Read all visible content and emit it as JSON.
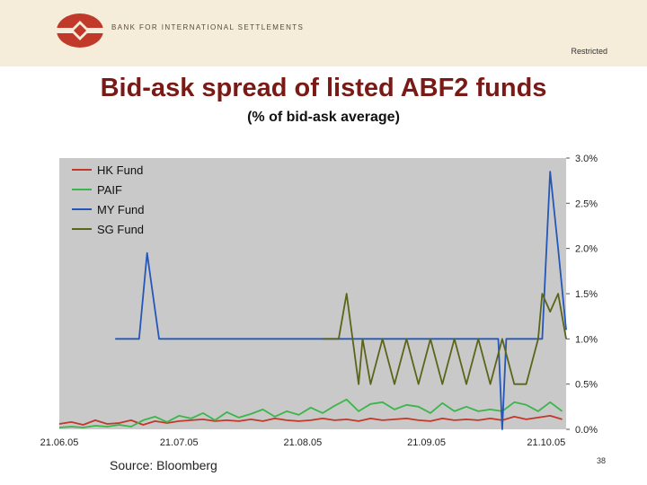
{
  "header": {
    "bank_name": "BANK FOR INTERNATIONAL SETTLEMENTS",
    "restricted": "Restricted",
    "logo_icon": "bis-logo-icon"
  },
  "slide": {
    "title": "Bid-ask spread of listed ABF2 funds",
    "subtitle": "(% of bid-ask average)",
    "source": "Source: Bloomberg",
    "page_number": "38"
  },
  "colors": {
    "plot_bg": "#c9c9c9",
    "HK Fund": "#c0392b",
    "PAIF": "#3cb54a",
    "MY Fund": "#2457b8",
    "SG Fund": "#5b6418",
    "title": "#7a1a16"
  },
  "chart_data": {
    "type": "line",
    "x_start": "2005-06-21",
    "x_end": "2005-10-26",
    "x_ticks": [
      {
        "label": "21.06.05",
        "date": "2005-06-21"
      },
      {
        "label": "21.07.05",
        "date": "2005-07-21"
      },
      {
        "label": "21.08.05",
        "date": "2005-08-21"
      },
      {
        "label": "21.09.05",
        "date": "2005-09-21"
      },
      {
        "label": "21.10.05",
        "date": "2005-10-21"
      }
    ],
    "ylim": [
      0,
      3.0
    ],
    "y_ticks": [
      "0.0%",
      "0.5%",
      "1.0%",
      "1.5%",
      "2.0%",
      "2.5%",
      "3.0%"
    ],
    "y_axis_side": "right",
    "legend_position": "top-left",
    "series": [
      {
        "name": "HK Fund",
        "x": [
          "2005-06-21",
          "2005-06-24",
          "2005-06-27",
          "2005-06-30",
          "2005-07-03",
          "2005-07-06",
          "2005-07-09",
          "2005-07-12",
          "2005-07-15",
          "2005-07-18",
          "2005-07-21",
          "2005-07-24",
          "2005-07-27",
          "2005-07-30",
          "2005-08-02",
          "2005-08-05",
          "2005-08-08",
          "2005-08-11",
          "2005-08-14",
          "2005-08-17",
          "2005-08-20",
          "2005-08-23",
          "2005-08-26",
          "2005-08-29",
          "2005-09-01",
          "2005-09-04",
          "2005-09-07",
          "2005-09-10",
          "2005-09-13",
          "2005-09-16",
          "2005-09-19",
          "2005-09-22",
          "2005-09-25",
          "2005-09-28",
          "2005-10-01",
          "2005-10-04",
          "2005-10-07",
          "2005-10-10",
          "2005-10-13",
          "2005-10-16",
          "2005-10-19",
          "2005-10-22",
          "2005-10-25"
        ],
        "y": [
          0.06,
          0.08,
          0.05,
          0.1,
          0.06,
          0.07,
          0.1,
          0.05,
          0.09,
          0.07,
          0.09,
          0.1,
          0.11,
          0.09,
          0.1,
          0.09,
          0.11,
          0.09,
          0.12,
          0.1,
          0.09,
          0.1,
          0.12,
          0.1,
          0.11,
          0.09,
          0.12,
          0.1,
          0.11,
          0.12,
          0.1,
          0.09,
          0.12,
          0.1,
          0.11,
          0.1,
          0.12,
          0.1,
          0.14,
          0.11,
          0.13,
          0.15,
          0.11
        ]
      },
      {
        "name": "PAIF",
        "x": [
          "2005-06-21",
          "2005-06-24",
          "2005-06-27",
          "2005-06-30",
          "2005-07-03",
          "2005-07-06",
          "2005-07-09",
          "2005-07-12",
          "2005-07-15",
          "2005-07-18",
          "2005-07-21",
          "2005-07-24",
          "2005-07-27",
          "2005-07-30",
          "2005-08-02",
          "2005-08-05",
          "2005-08-08",
          "2005-08-11",
          "2005-08-14",
          "2005-08-17",
          "2005-08-20",
          "2005-08-23",
          "2005-08-26",
          "2005-08-29",
          "2005-09-01",
          "2005-09-04",
          "2005-09-07",
          "2005-09-10",
          "2005-09-13",
          "2005-09-16",
          "2005-09-19",
          "2005-09-22",
          "2005-09-25",
          "2005-09-28",
          "2005-10-01",
          "2005-10-04",
          "2005-10-07",
          "2005-10-10",
          "2005-10-13",
          "2005-10-16",
          "2005-10-19",
          "2005-10-22",
          "2005-10-25"
        ],
        "y": [
          0.02,
          0.03,
          0.02,
          0.04,
          0.03,
          0.05,
          0.03,
          0.1,
          0.14,
          0.08,
          0.15,
          0.12,
          0.18,
          0.1,
          0.19,
          0.13,
          0.17,
          0.22,
          0.14,
          0.2,
          0.16,
          0.24,
          0.18,
          0.26,
          0.33,
          0.2,
          0.28,
          0.3,
          0.22,
          0.27,
          0.25,
          0.18,
          0.29,
          0.2,
          0.25,
          0.2,
          0.22,
          0.2,
          0.3,
          0.27,
          0.2,
          0.3,
          0.2
        ]
      },
      {
        "name": "MY Fund",
        "x": [
          "2005-07-05",
          "2005-07-11",
          "2005-07-13",
          "2005-07-16",
          "2005-08-26",
          "2005-09-20",
          "2005-10-09",
          "2005-10-10",
          "2005-10-11",
          "2005-10-13",
          "2005-10-15",
          "2005-10-20",
          "2005-10-22",
          "2005-10-24",
          "2005-10-26"
        ],
        "y": [
          1.0,
          1.0,
          1.95,
          1.0,
          1.0,
          1.0,
          1.0,
          0.0,
          1.0,
          1.0,
          1.0,
          1.0,
          2.85,
          2.0,
          1.1
        ]
      },
      {
        "name": "SG Fund",
        "x": [
          "2005-08-26",
          "2005-08-30",
          "2005-09-01",
          "2005-09-04",
          "2005-09-05",
          "2005-09-07",
          "2005-09-10",
          "2005-09-13",
          "2005-09-16",
          "2005-09-19",
          "2005-09-22",
          "2005-09-25",
          "2005-09-28",
          "2005-10-01",
          "2005-10-04",
          "2005-10-07",
          "2005-10-10",
          "2005-10-13",
          "2005-10-16",
          "2005-10-19",
          "2005-10-20",
          "2005-10-22",
          "2005-10-24",
          "2005-10-26"
        ],
        "y": [
          1.0,
          1.0,
          1.5,
          0.5,
          1.0,
          0.5,
          1.0,
          0.5,
          1.0,
          0.5,
          1.0,
          0.5,
          1.0,
          0.5,
          1.0,
          0.5,
          1.0,
          0.5,
          0.5,
          1.0,
          1.5,
          1.3,
          1.5,
          1.0
        ]
      }
    ]
  }
}
